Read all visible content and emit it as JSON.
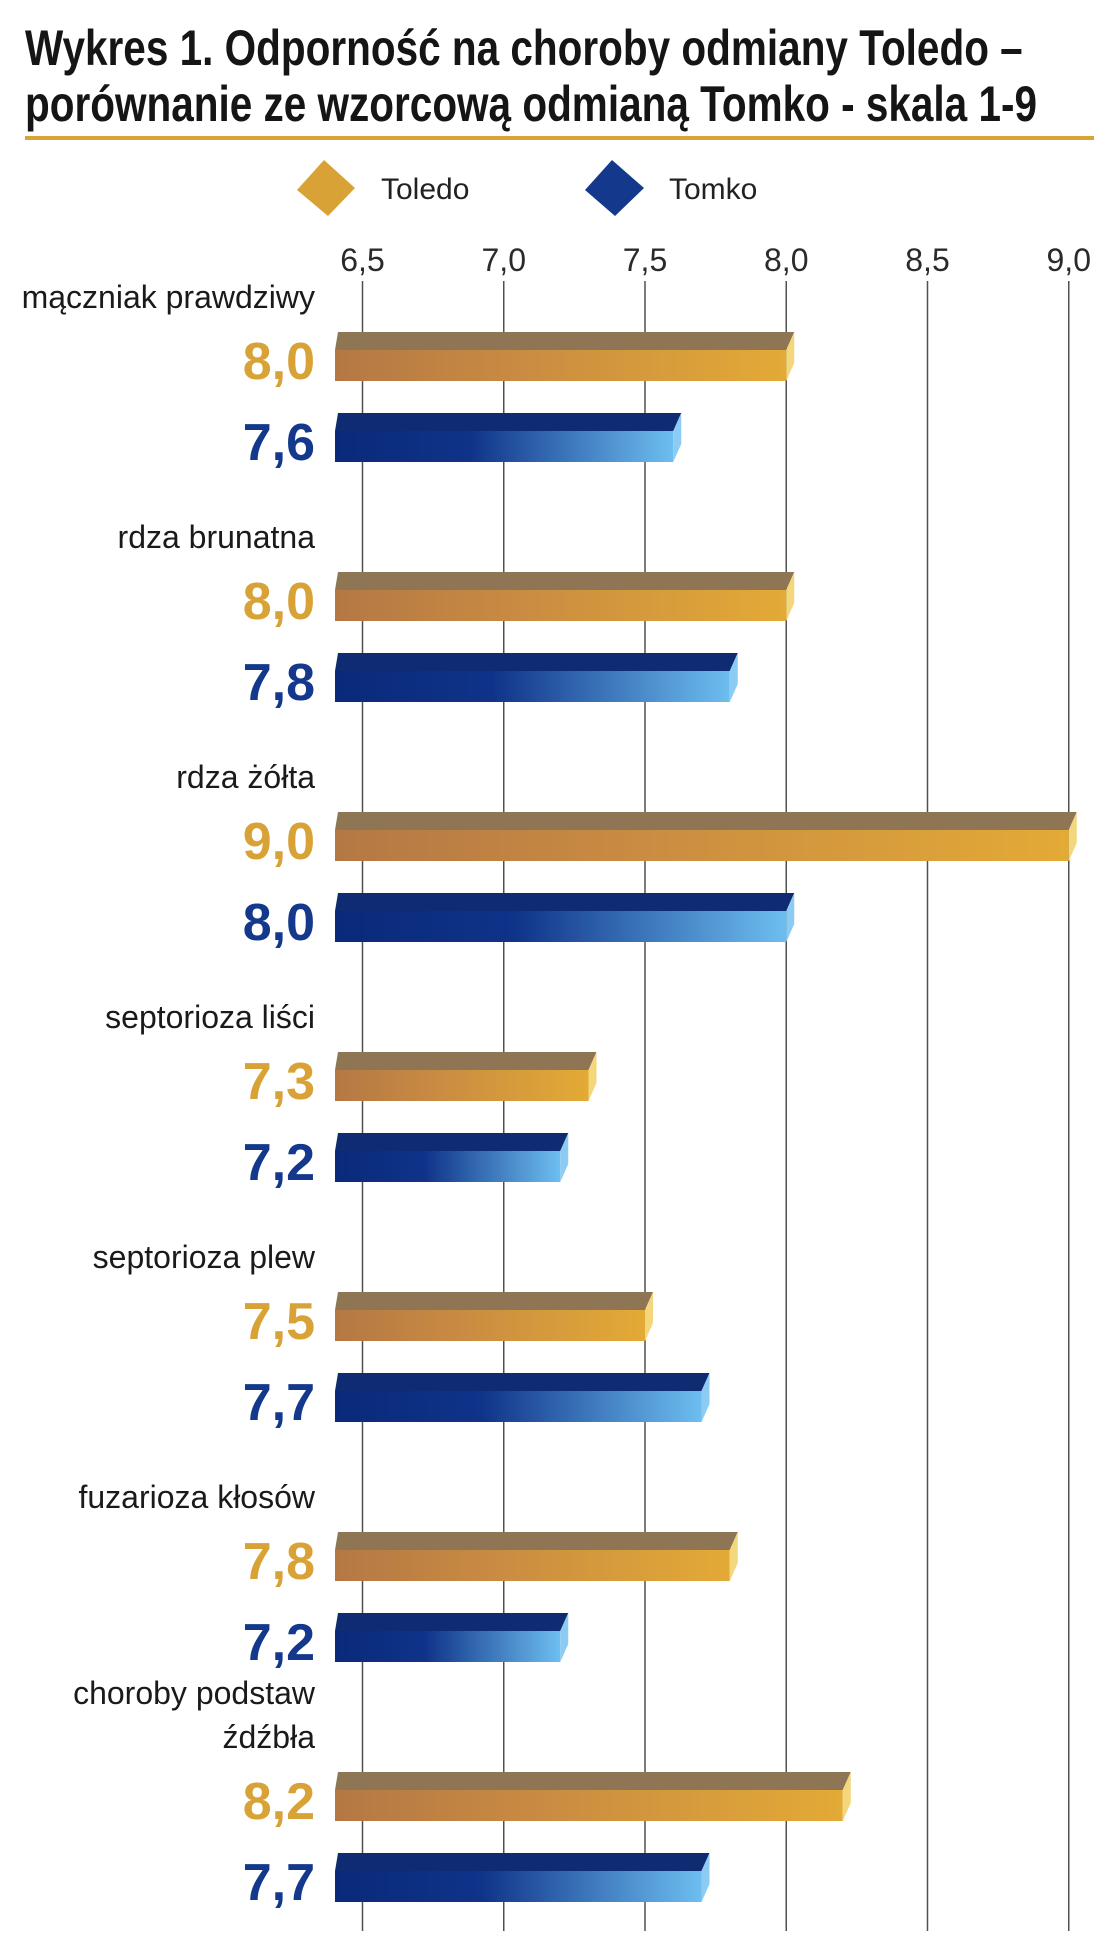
{
  "chart_data": {
    "type": "bar",
    "orientation": "horizontal",
    "title": "Wykres 1. Odporność na choroby odmiany Toledo – porównanie ze wzorcową odmianą Tomko - skala 1-9",
    "categories": [
      "mączniak prawdziwy",
      "rdza brunatna",
      "rdza żółta",
      "septorioza liści",
      "septorioza plew",
      "fuzarioza kłosów",
      "choroby podstaw źdźbła"
    ],
    "series": [
      {
        "name": "Toledo",
        "values": [
          8.0,
          8.0,
          9.0,
          7.3,
          7.5,
          7.8,
          8.2
        ],
        "data_labels": [
          "8,0",
          "8,0",
          "9,0",
          "7,3",
          "7,5",
          "7,8",
          "8,2"
        ],
        "color": "#d9a236",
        "bar_colors": {
          "front_start": "#b47844",
          "front_mid": "#c98b42",
          "front_end": "#e3aa36",
          "top": "#8e7554",
          "cap": "#f4d77c"
        }
      },
      {
        "name": "Tomko",
        "values": [
          7.6,
          7.8,
          8.0,
          7.2,
          7.7,
          7.2,
          7.7
        ],
        "data_labels": [
          "7,6",
          "7,8",
          "8,0",
          "7,2",
          "7,7",
          "7,2",
          "7,7"
        ],
        "color": "#14398c",
        "bar_colors": {
          "front_start": "#0a297a",
          "front_mid": "#0f3389",
          "front_end": "#6dbef0",
          "top": "#0f2c72",
          "cap": "#8ccbf3"
        }
      }
    ],
    "x_ticks": [
      "6,5",
      "7,0",
      "7,5",
      "8,0",
      "8,5",
      "9,0"
    ],
    "x_tick_values": [
      6.5,
      7.0,
      7.5,
      8.0,
      8.5,
      9.0
    ],
    "xlim": [
      6.5,
      9.0
    ],
    "grid": "vertical",
    "legend": "top",
    "colors": {
      "title_rule": "#d9a33a",
      "gridline": "#505050"
    }
  }
}
